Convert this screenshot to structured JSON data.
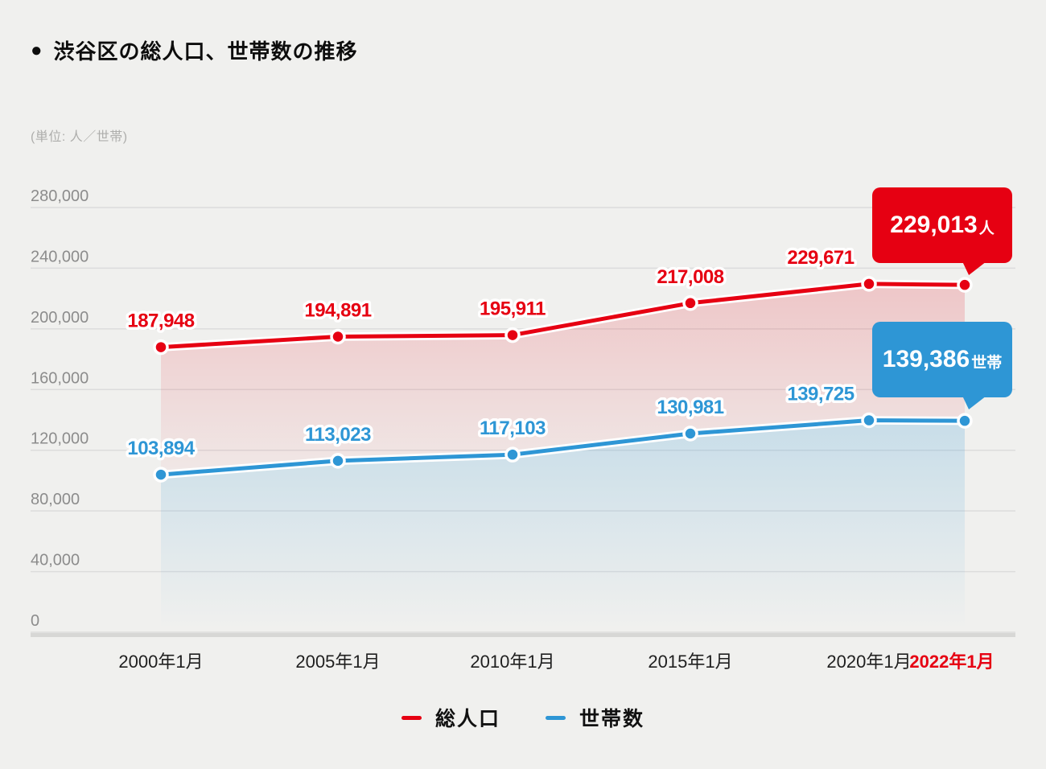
{
  "title_bullet": "●",
  "title": "渋谷区の総人口、世帯数の推移",
  "unit_note": "(単位: 人／世帯)",
  "colors": {
    "background": "#f0f0ee",
    "red": "#e60012",
    "blue": "#2e96d5",
    "grid": "#dcdcdc",
    "axis_band": "#d7d7d5",
    "ytick_text": "#8c8c8c",
    "xtick_text": "#1f1f1f",
    "xtick_highlight": "#e60012"
  },
  "chart_data": {
    "type": "line",
    "categories": [
      "2000年1月",
      "2005年1月",
      "2010年1月",
      "2015年1月",
      "2020年1月",
      "2022年1月"
    ],
    "highlight_category": "2022年1月",
    "yticks": [
      0,
      40000,
      80000,
      120000,
      160000,
      200000,
      240000,
      280000
    ],
    "ytick_labels": [
      "0",
      "40,000",
      "80,000",
      "120,000",
      "160,000",
      "200,000",
      "240,000",
      "280,000"
    ],
    "ylim": [
      0,
      280000
    ],
    "grid": true,
    "legend_position": "bottom",
    "series": [
      {
        "name": "総人口",
        "key": "total-population",
        "color": "#e60012",
        "values": [
          187948,
          194891,
          195911,
          217008,
          229671,
          229013
        ],
        "point_labels": [
          "187,948",
          "194,891",
          "195,911",
          "217,008",
          "229,671",
          null
        ]
      },
      {
        "name": "世帯数",
        "key": "households",
        "color": "#2e96d5",
        "values": [
          103894,
          113023,
          117103,
          130981,
          139725,
          139386
        ],
        "point_labels": [
          "103,894",
          "113,023",
          "117,103",
          "130,981",
          "139,725",
          null
        ]
      }
    ],
    "callouts": [
      {
        "value": "229,013",
        "unit": "人",
        "color": "#e60012",
        "series": "総人口"
      },
      {
        "value": "139,386",
        "unit": "世帯",
        "color": "#2e96d5",
        "series": "世帯数"
      }
    ]
  },
  "legend": [
    {
      "label": "総人口",
      "color": "#e60012"
    },
    {
      "label": "世帯数",
      "color": "#2e96d5"
    }
  ]
}
